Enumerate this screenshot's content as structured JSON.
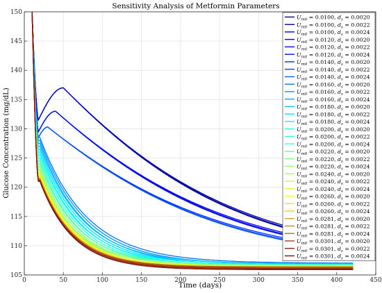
{
  "chart_data": {
    "type": "line",
    "title": "Sensitivity Analysis of Metformin Parameters",
    "xlabel": "Time (days)",
    "ylabel": "Glucose Concentration (mg/dL)",
    "xlim": [
      0,
      450
    ],
    "ylim": [
      105,
      150
    ],
    "xticks": [
      0,
      50,
      100,
      150,
      200,
      250,
      300,
      350,
      400,
      450
    ],
    "yticks": [
      105,
      110,
      115,
      120,
      125,
      130,
      135,
      140,
      145,
      150
    ],
    "grid": true,
    "legend_position": "top-right",
    "t_end": 421,
    "t_drop": 18,
    "initial_value": 150,
    "colormap": "jet",
    "series": [
      {
        "um0": "0.0100",
        "ds": "0.0020",
        "name_label": "U_m0 = 0.0100, d_s = 0.0020",
        "start": 131.5,
        "peak": 137.0,
        "peak_t": 50,
        "plateau": 107.3,
        "color": "#00008f"
      },
      {
        "um0": "0.0100",
        "ds": "0.0022",
        "name_label": "U_m0 = 0.0100, d_s = 0.0022",
        "start": 131.5,
        "peak": 137.0,
        "peak_t": 50,
        "plateau": 107.0,
        "color": "#0000a8"
      },
      {
        "um0": "0.0100",
        "ds": "0.0024",
        "name_label": "U_m0 = 0.0100, d_s = 0.0024",
        "start": 131.5,
        "peak": 137.0,
        "peak_t": 50,
        "plateau": 106.8,
        "color": "#0000c2"
      },
      {
        "um0": "0.0120",
        "ds": "0.0020",
        "name_label": "U_m0 = 0.0120, d_s = 0.0020",
        "start": 129.5,
        "peak": 133.0,
        "peak_t": 40,
        "plateau": 107.2,
        "color": "#0000db"
      },
      {
        "um0": "0.0120",
        "ds": "0.0022",
        "name_label": "U_m0 = 0.0120, d_s = 0.0022",
        "start": 129.5,
        "peak": 133.0,
        "peak_t": 40,
        "plateau": 106.9,
        "color": "#0000f5"
      },
      {
        "um0": "0.0120",
        "ds": "0.0024",
        "name_label": "U_m0 = 0.0120, d_s = 0.0024",
        "start": 129.5,
        "peak": 133.0,
        "peak_t": 40,
        "plateau": 106.7,
        "color": "#000fff"
      },
      {
        "um0": "0.0140",
        "ds": "0.0020",
        "name_label": "U_m0 = 0.0140, d_s = 0.0020",
        "start": 128.5,
        "peak": 130.3,
        "peak_t": 30,
        "plateau": 107.1,
        "color": "#0028ff"
      },
      {
        "um0": "0.0140",
        "ds": "0.0022",
        "name_label": "U_m0 = 0.0140, d_s = 0.0022",
        "start": 128.5,
        "peak": 130.3,
        "peak_t": 30,
        "plateau": 106.8,
        "color": "#0042ff"
      },
      {
        "um0": "0.0140",
        "ds": "0.0024",
        "name_label": "U_m0 = 0.0140, d_s = 0.0024",
        "start": 128.5,
        "peak": 130.3,
        "peak_t": 30,
        "plateau": 106.6,
        "color": "#005cff"
      },
      {
        "um0": "0.0160",
        "ds": "0.0020",
        "name_label": "U_m0 = 0.0160, d_s = 0.0020",
        "start": 128.5,
        "peak": 128.5,
        "peak_t": 20,
        "plateau": 107.0,
        "color": "#0075ff"
      },
      {
        "um0": "0.0160",
        "ds": "0.0022",
        "name_label": "U_m0 = 0.0160, d_s = 0.0022",
        "start": 128.0,
        "peak": 128.0,
        "peak_t": 20,
        "plateau": 106.8,
        "color": "#008fff"
      },
      {
        "um0": "0.0160",
        "ds": "0.0024",
        "name_label": "U_m0 = 0.0160, d_s = 0.0024",
        "start": 127.5,
        "peak": 127.5,
        "peak_t": 20,
        "plateau": 106.6,
        "color": "#00a8ff"
      },
      {
        "um0": "0.0180",
        "ds": "0.0020",
        "name_label": "U_m0 = 0.0180, d_s = 0.0020",
        "start": 127.0,
        "peak": 127.0,
        "peak_t": 20,
        "plateau": 106.9,
        "color": "#00c2ff"
      },
      {
        "um0": "0.0180",
        "ds": "0.0022",
        "name_label": "U_m0 = 0.0180, d_s = 0.0022",
        "start": 126.5,
        "peak": 126.5,
        "peak_t": 20,
        "plateau": 106.7,
        "color": "#00dbff"
      },
      {
        "um0": "0.0180",
        "ds": "0.0024",
        "name_label": "U_m0 = 0.0180, d_s = 0.0024",
        "start": 126.0,
        "peak": 126.0,
        "peak_t": 20,
        "plateau": 106.5,
        "color": "#00f5ff"
      },
      {
        "um0": "0.0200",
        "ds": "0.0020",
        "name_label": "U_m0 = 0.0200, d_s = 0.0020",
        "start": 125.5,
        "peak": 125.5,
        "peak_t": 20,
        "plateau": 106.8,
        "color": "#0fffef"
      },
      {
        "um0": "0.0200",
        "ds": "0.0022",
        "name_label": "U_m0 = 0.0200, d_s = 0.0022",
        "start": 125.0,
        "peak": 125.0,
        "peak_t": 20,
        "plateau": 106.6,
        "color": "#28ffd6"
      },
      {
        "um0": "0.0200",
        "ds": "0.0024",
        "name_label": "U_m0 = 0.0200, d_s = 0.0024",
        "start": 124.5,
        "peak": 124.5,
        "peak_t": 20,
        "plateau": 106.4,
        "color": "#42ffbc"
      },
      {
        "um0": "0.0220",
        "ds": "0.0020",
        "name_label": "U_m0 = 0.0220, d_s = 0.0020",
        "start": 124.0,
        "peak": 124.0,
        "peak_t": 20,
        "plateau": 106.7,
        "color": "#5cffa3"
      },
      {
        "um0": "0.0220",
        "ds": "0.0022",
        "name_label": "U_m0 = 0.0220, d_s = 0.0022",
        "start": 123.5,
        "peak": 123.5,
        "peak_t": 20,
        "plateau": 106.5,
        "color": "#75ff89"
      },
      {
        "um0": "0.0220",
        "ds": "0.0024",
        "name_label": "U_m0 = 0.0220, d_s = 0.0024",
        "start": 123.0,
        "peak": 123.0,
        "peak_t": 20,
        "plateau": 106.3,
        "color": "#8fff70"
      },
      {
        "um0": "0.0240",
        "ds": "0.0020",
        "name_label": "U_m0 = 0.0240, d_s = 0.0020",
        "start": 122.8,
        "peak": 122.8,
        "peak_t": 20,
        "plateau": 106.6,
        "color": "#a8ff56"
      },
      {
        "um0": "0.0240",
        "ds": "0.0022",
        "name_label": "U_m0 = 0.0240, d_s = 0.0022",
        "start": 122.5,
        "peak": 122.5,
        "peak_t": 20,
        "plateau": 106.4,
        "color": "#c2ff3d"
      },
      {
        "um0": "0.0240",
        "ds": "0.0024",
        "name_label": "U_m0 = 0.0240, d_s = 0.0024",
        "start": 122.2,
        "peak": 122.2,
        "peak_t": 20,
        "plateau": 106.2,
        "color": "#dbff23"
      },
      {
        "um0": "0.0260",
        "ds": "0.0020",
        "name_label": "U_m0 = 0.0260, d_s = 0.0020",
        "start": 122.0,
        "peak": 122.0,
        "peak_t": 20,
        "plateau": 106.5,
        "color": "#f5ff0a"
      },
      {
        "um0": "0.0260",
        "ds": "0.0022",
        "name_label": "U_m0 = 0.0260, d_s = 0.0022",
        "start": 121.8,
        "peak": 121.8,
        "peak_t": 20,
        "plateau": 106.3,
        "color": "#ffe500"
      },
      {
        "um0": "0.0260",
        "ds": "0.0024",
        "name_label": "U_m0 = 0.0260, d_s = 0.0024",
        "start": 121.6,
        "peak": 121.6,
        "peak_t": 20,
        "plateau": 106.1,
        "color": "#ffcc00"
      },
      {
        "um0": "0.0281",
        "ds": "0.0020",
        "name_label": "U_m0 = 0.0281, d_s = 0.0020",
        "start": 121.5,
        "peak": 121.5,
        "peak_t": 20,
        "plateau": 106.4,
        "color": "#d39b2a"
      },
      {
        "um0": "0.0281",
        "ds": "0.0022",
        "name_label": "U_m0 = 0.0281, d_s = 0.0022",
        "start": 121.4,
        "peak": 121.4,
        "peak_t": 20,
        "plateau": 106.2,
        "color": "#c88421"
      },
      {
        "um0": "0.0281",
        "ds": "0.0024",
        "name_label": "U_m0 = 0.0281, d_s = 0.0024",
        "start": 121.3,
        "peak": 121.3,
        "peak_t": 20,
        "plateau": 106.0,
        "color": "#b56d18"
      },
      {
        "um0": "0.0301",
        "ds": "0.0020",
        "name_label": "U_m0 = 0.0301, d_s = 0.0020",
        "start": 121.2,
        "peak": 121.2,
        "peak_t": 20,
        "plateau": 106.3,
        "color": "#a33b1b"
      },
      {
        "um0": "0.0301",
        "ds": "0.0022",
        "name_label": "U_m0 = 0.0301, d_s = 0.0022",
        "start": 121.1,
        "peak": 121.1,
        "peak_t": 20,
        "plateau": 106.1,
        "color": "#8f2414"
      },
      {
        "um0": "0.0301",
        "ds": "0.0024",
        "name_label": "U_m0 = 0.0301, d_s = 0.0024",
        "start": 121.0,
        "peak": 121.0,
        "peak_t": 20,
        "plateau": 105.9,
        "color": "#7a0d0d"
      }
    ]
  }
}
